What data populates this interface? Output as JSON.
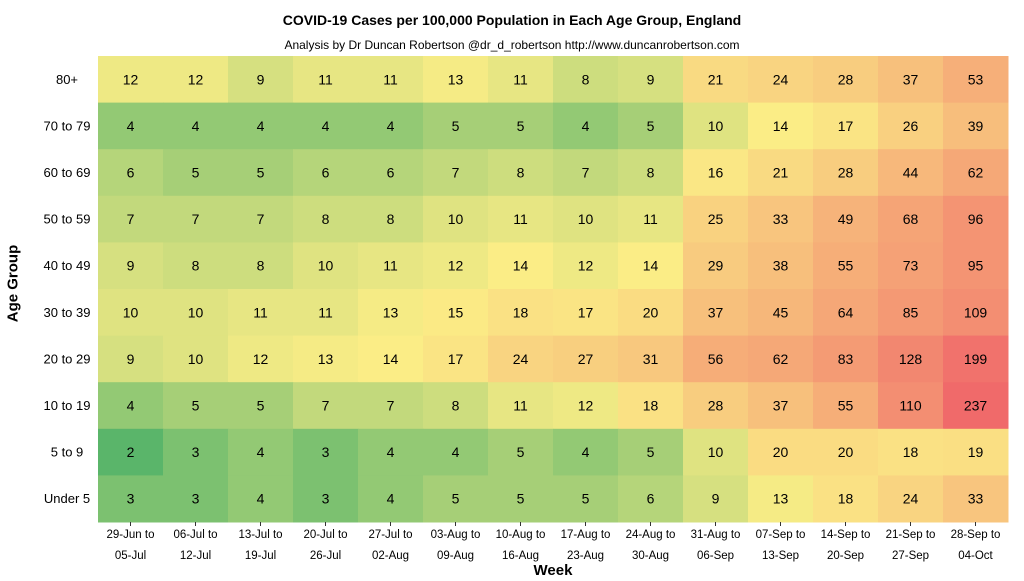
{
  "chart_data": {
    "type": "heatmap",
    "title": "COVID-19 Cases per 100,000 Population in Each Age Group, England",
    "subtitle": "Analysis by Dr Duncan Robertson @dr_d_robertson http://www.duncanrobertson.com",
    "xlabel": "Week",
    "ylabel": "Age Group",
    "rows": [
      "80+",
      "70 to 79",
      "60 to 69",
      "50 to 59",
      "40 to 49",
      "30 to 39",
      "20 to 29",
      "10 to 19",
      "5 to 9",
      "Under 5"
    ],
    "columns": [
      {
        "line1": "29-Jun to",
        "line2": "05-Jul"
      },
      {
        "line1": "06-Jul to",
        "line2": "12-Jul"
      },
      {
        "line1": "13-Jul to",
        "line2": "19-Jul"
      },
      {
        "line1": "20-Jul to",
        "line2": "26-Jul"
      },
      {
        "line1": "27-Jul to",
        "line2": "02-Aug"
      },
      {
        "line1": "03-Aug to",
        "line2": "09-Aug"
      },
      {
        "line1": "10-Aug to",
        "line2": "16-Aug"
      },
      {
        "line1": "17-Aug to",
        "line2": "23-Aug"
      },
      {
        "line1": "24-Aug to",
        "line2": "30-Aug"
      },
      {
        "line1": "31-Aug to",
        "line2": "06-Sep"
      },
      {
        "line1": "07-Sep to",
        "line2": "13-Sep"
      },
      {
        "line1": "14-Sep to",
        "line2": "20-Sep"
      },
      {
        "line1": "21-Sep to",
        "line2": "27-Sep"
      },
      {
        "line1": "28-Sep to",
        "line2": "04-Oct"
      }
    ],
    "values": [
      [
        12,
        12,
        9,
        11,
        11,
        13,
        11,
        8,
        9,
        21,
        24,
        28,
        37,
        53
      ],
      [
        4,
        4,
        4,
        4,
        4,
        5,
        5,
        4,
        5,
        10,
        14,
        17,
        26,
        39
      ],
      [
        6,
        5,
        5,
        6,
        6,
        7,
        8,
        7,
        8,
        16,
        21,
        28,
        44,
        62
      ],
      [
        7,
        7,
        7,
        8,
        8,
        10,
        11,
        10,
        11,
        25,
        33,
        49,
        68,
        96
      ],
      [
        9,
        8,
        8,
        10,
        11,
        12,
        14,
        12,
        14,
        29,
        38,
        55,
        73,
        95
      ],
      [
        10,
        10,
        11,
        11,
        13,
        15,
        18,
        17,
        20,
        37,
        45,
        64,
        85,
        109
      ],
      [
        9,
        10,
        12,
        13,
        14,
        17,
        24,
        27,
        31,
        56,
        62,
        83,
        128,
        199
      ],
      [
        4,
        5,
        5,
        7,
        7,
        8,
        11,
        12,
        18,
        28,
        37,
        55,
        110,
        237
      ],
      [
        2,
        3,
        4,
        3,
        4,
        4,
        5,
        4,
        5,
        10,
        20,
        20,
        18,
        19
      ],
      [
        3,
        3,
        4,
        3,
        4,
        5,
        5,
        5,
        6,
        9,
        13,
        18,
        24,
        33
      ]
    ],
    "colormap": {
      "low": "#5ab56a",
      "mid": "#fbed86",
      "high": "#f06a6a"
    },
    "grid": false,
    "legend": "none"
  }
}
